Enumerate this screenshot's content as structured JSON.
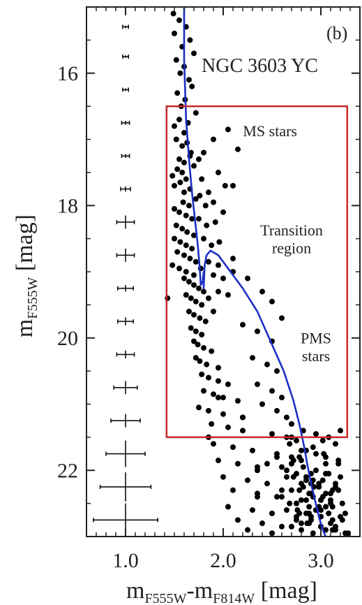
{
  "chart_data": {
    "type": "scatter",
    "panel_label": "(b)",
    "title": "NGC 3603 YC",
    "xlabel": {
      "main": "m",
      "sub1": "F555W",
      "mid": "-m",
      "sub2": "F814W",
      "unit": " [mag]"
    },
    "ylabel": {
      "main": "m",
      "sub": "F555W",
      "unit": " [mag]"
    },
    "xlim": [
      0.6,
      3.4
    ],
    "ylim": [
      23.0,
      15.0
    ],
    "y_inverted": true,
    "x_ticks": [
      1.0,
      2.0,
      3.0
    ],
    "x_tick_labels": [
      "1.0",
      "2.0",
      "3.0"
    ],
    "y_ticks": [
      16,
      18,
      20,
      22
    ],
    "y_tick_labels": [
      "16",
      "18",
      "20",
      "22"
    ],
    "annotations": [
      {
        "text": "MS stars",
        "x": 2.48,
        "y": 16.95
      },
      {
        "text": "Transition",
        "x": 2.7,
        "y": 18.45
      },
      {
        "text": "region",
        "x": 2.7,
        "y": 18.72
      },
      {
        "text": "PMS",
        "x": 2.95,
        "y": 20.08
      },
      {
        "text": "stars",
        "x": 2.95,
        "y": 20.35
      }
    ],
    "region_box": {
      "x0": 1.42,
      "x1": 3.27,
      "y0": 16.5,
      "y1": 21.5,
      "color": "#c62828"
    },
    "isochrone": {
      "name": "",
      "color": "#1c2fc4",
      "x": [
        1.6,
        1.6,
        1.62,
        1.65,
        1.68,
        1.71,
        1.74,
        1.76,
        1.77,
        1.79,
        1.8,
        1.8,
        1.81,
        1.83,
        1.87,
        1.95,
        2.05,
        2.2,
        2.35,
        2.5,
        2.62,
        2.72,
        2.78,
        2.83,
        2.86,
        2.9,
        2.94,
        2.98,
        3.02,
        3.05
      ],
      "y": [
        15.0,
        15.8,
        16.7,
        17.3,
        17.8,
        18.2,
        18.6,
        18.95,
        19.2,
        19.15,
        19.0,
        19.25,
        18.9,
        18.75,
        18.68,
        18.75,
        18.95,
        19.25,
        19.6,
        20.1,
        20.5,
        20.95,
        21.3,
        21.65,
        21.9,
        22.2,
        22.45,
        22.7,
        22.9,
        23.0
      ]
    },
    "error_bars": {
      "x": 1.0,
      "y": [
        15.3,
        15.75,
        16.25,
        16.75,
        17.25,
        17.75,
        18.25,
        18.75,
        19.25,
        19.75,
        20.25,
        20.75,
        21.25,
        21.75,
        22.25,
        22.75
      ],
      "xerr": [
        0.03,
        0.03,
        0.03,
        0.04,
        0.04,
        0.05,
        0.09,
        0.09,
        0.08,
        0.08,
        0.09,
        0.12,
        0.15,
        0.2,
        0.26,
        0.33
      ],
      "yerr": [
        0.02,
        0.02,
        0.02,
        0.03,
        0.03,
        0.04,
        0.1,
        0.1,
        0.05,
        0.06,
        0.06,
        0.1,
        0.1,
        0.2,
        0.22,
        0.25
      ]
    },
    "stars": {
      "color": "#000000",
      "x": [
        1.49,
        1.5,
        1.55,
        1.58,
        1.62,
        1.66,
        1.52,
        1.56,
        1.6,
        1.65,
        1.7,
        1.53,
        1.57,
        1.61,
        1.68,
        1.72,
        1.5,
        1.55,
        1.6,
        1.64,
        1.52,
        1.58,
        1.63,
        1.67,
        1.55,
        1.6,
        1.66,
        1.7,
        1.58,
        1.62,
        1.5,
        1.56,
        1.6,
        1.66,
        1.72,
        1.48,
        1.53,
        1.59,
        1.65,
        1.75,
        1.8,
        1.9,
        2.05,
        2.15,
        1.5,
        1.55,
        1.62,
        1.68,
        1.78,
        1.85,
        1.95,
        2.1,
        1.52,
        1.58,
        1.63,
        1.7,
        1.76,
        1.82,
        1.9,
        2.02,
        1.5,
        1.56,
        1.62,
        1.68,
        1.75,
        1.83,
        1.92,
        2.0,
        1.53,
        1.6,
        1.66,
        1.72,
        1.8,
        1.88,
        1.96,
        1.48,
        1.55,
        1.62,
        1.7,
        1.77,
        1.85,
        1.95,
        1.6,
        1.65,
        1.7,
        1.75,
        1.8,
        1.9,
        2.0,
        2.1,
        1.62,
        1.67,
        1.72,
        1.78,
        1.85,
        1.95,
        2.05,
        1.65,
        1.7,
        1.76,
        1.82,
        1.9,
        1.67,
        1.72,
        1.78,
        1.7,
        1.74,
        1.8,
        1.88,
        1.72,
        1.76,
        1.83,
        1.95,
        2.1,
        2.25,
        2.4,
        2.5,
        2.6,
        1.78,
        1.85,
        1.95,
        2.05,
        2.2,
        2.35,
        2.5,
        1.8,
        1.9,
        2.0,
        2.15,
        2.3,
        2.45,
        2.55,
        1.43,
        1.75,
        1.85,
        2.0,
        2.2,
        2.35,
        2.5,
        2.6,
        1.88,
        2.05,
        2.2,
        2.4,
        2.55,
        2.65,
        2.7,
        1.9,
        2.1,
        2.3,
        2.5,
        2.65,
        2.75,
        1.95,
        2.15,
        2.35,
        2.55,
        2.7,
        2.8,
        2.0,
        2.25,
        2.45,
        2.65,
        2.75,
        2.85,
        1.85,
        2.1,
        2.35,
        2.55,
        2.7,
        2.82,
        2.9,
        2.05,
        2.3,
        2.5,
        2.68,
        2.8,
        2.92,
        2.15,
        2.4,
        2.6,
        2.75,
        2.85,
        2.95,
        3.05,
        2.25,
        2.5,
        2.7,
        2.8,
        2.9,
        3.0,
        2.35,
        2.6,
        2.75,
        2.88,
        2.98,
        3.1,
        2.45,
        2.65,
        2.8,
        2.92,
        3.05,
        3.15,
        1.95,
        2.2,
        2.55,
        2.72,
        2.85,
        2.95,
        3.05,
        3.18,
        2.6,
        2.75,
        2.88,
        3.0,
        3.1,
        3.22,
        2.65,
        2.78,
        2.9,
        3.0,
        3.12,
        3.25,
        2.68,
        2.8,
        2.92,
        3.02,
        3.15,
        2.7,
        2.82,
        2.95,
        3.05,
        3.18,
        2.72,
        2.85,
        2.98,
        3.08,
        3.2,
        2.75,
        2.88,
        3.0,
        3.1,
        3.22,
        2.78,
        2.9,
        3.02,
        3.12,
        2.8,
        2.92,
        3.05,
        3.15,
        2.82,
        2.95,
        3.08,
        3.2,
        2.85,
        2.98,
        3.1,
        2.88,
        3.0,
        3.12,
        2.9,
        3.02,
        3.15,
        3.28,
        2.93,
        3.05,
        3.18,
        2.95,
        3.08,
        3.2,
        3.0,
        3.12,
        3.25,
        2.7,
        2.78,
        3.03,
        3.15,
        2.76,
        2.86,
        2.5,
        2.35,
        2.6
      ],
      "y": [
        15.1,
        15.4,
        15.2,
        15.6,
        15.3,
        15.5,
        15.8,
        16.0,
        15.9,
        16.1,
        15.7,
        16.3,
        16.5,
        16.4,
        16.2,
        16.6,
        16.8,
        16.7,
        16.9,
        16.75,
        17.0,
        17.1,
        17.05,
        17.2,
        17.3,
        17.35,
        17.25,
        17.4,
        17.5,
        17.6,
        17.7,
        17.65,
        17.8,
        17.75,
        17.9,
        17.55,
        17.45,
        17.95,
        18.0,
        17.3,
        17.2,
        17.0,
        16.85,
        17.15,
        18.05,
        18.1,
        18.15,
        18.2,
        17.6,
        17.8,
        17.5,
        17.7,
        18.3,
        18.35,
        18.4,
        18.45,
        17.85,
        18.0,
        17.95,
        17.7,
        18.5,
        18.55,
        18.6,
        18.65,
        18.2,
        18.3,
        18.25,
        18.1,
        18.7,
        18.75,
        18.8,
        18.85,
        18.5,
        18.6,
        18.55,
        18.9,
        18.95,
        19.0,
        19.05,
        18.95,
        18.85,
        18.9,
        19.1,
        19.15,
        19.2,
        19.25,
        19.3,
        19.05,
        19.1,
        19.0,
        19.35,
        19.4,
        19.45,
        19.5,
        19.4,
        19.3,
        19.35,
        19.6,
        19.65,
        19.7,
        19.75,
        19.6,
        19.85,
        19.9,
        19.95,
        20.05,
        20.1,
        20.15,
        20.2,
        20.3,
        20.35,
        20.4,
        20.45,
        18.8,
        19.1,
        19.3,
        19.45,
        19.7,
        20.55,
        20.6,
        20.65,
        20.7,
        19.8,
        19.9,
        20.05,
        20.8,
        20.85,
        20.9,
        20.95,
        20.3,
        20.4,
        20.5,
        19.4,
        21.05,
        21.1,
        21.15,
        21.2,
        20.7,
        20.8,
        20.9,
        21.3,
        21.35,
        21.4,
        21.0,
        21.1,
        21.2,
        21.3,
        21.6,
        21.65,
        21.7,
        21.45,
        21.5,
        21.55,
        21.85,
        21.9,
        21.95,
        21.75,
        21.8,
        21.85,
        22.1,
        22.15,
        22.2,
        22.0,
        22.05,
        22.1,
        21.5,
        22.3,
        22.35,
        22.4,
        22.3,
        22.25,
        22.2,
        22.55,
        22.6,
        22.65,
        22.5,
        22.45,
        22.4,
        22.75,
        22.8,
        22.85,
        22.7,
        22.65,
        22.6,
        22.55,
        22.9,
        22.95,
        22.85,
        22.8,
        22.75,
        22.7,
        22.0,
        22.3,
        22.5,
        22.35,
        22.25,
        22.45,
        21.9,
        22.1,
        22.2,
        22.15,
        22.05,
        22.25,
        20.9,
        21.2,
        21.8,
        21.85,
        21.7,
        21.75,
        21.8,
        21.9,
        22.4,
        22.5,
        22.55,
        22.45,
        22.35,
        22.5,
        22.6,
        22.65,
        22.7,
        22.6,
        22.55,
        22.65,
        21.6,
        21.7,
        21.65,
        21.55,
        21.6,
        21.9,
        21.95,
        22.0,
        21.9,
        21.85,
        22.1,
        22.15,
        22.2,
        22.05,
        22.1,
        22.75,
        22.8,
        22.85,
        22.8,
        22.75,
        22.3,
        22.35,
        22.4,
        22.3,
        22.9,
        22.95,
        22.9,
        22.85,
        21.4,
        21.45,
        21.5,
        21.4,
        22.45,
        22.55,
        22.5,
        22.65,
        22.7,
        22.75,
        22.05,
        22.15,
        22.2,
        22.95,
        22.25,
        22.35,
        22.3,
        22.6,
        22.65,
        22.7,
        22.85,
        22.9,
        22.95,
        21.5,
        21.8,
        21.75,
        22.9,
        22.6,
        22.8,
        22.65,
        22.4,
        21.95
      ],
      "size_note": ""
    }
  }
}
